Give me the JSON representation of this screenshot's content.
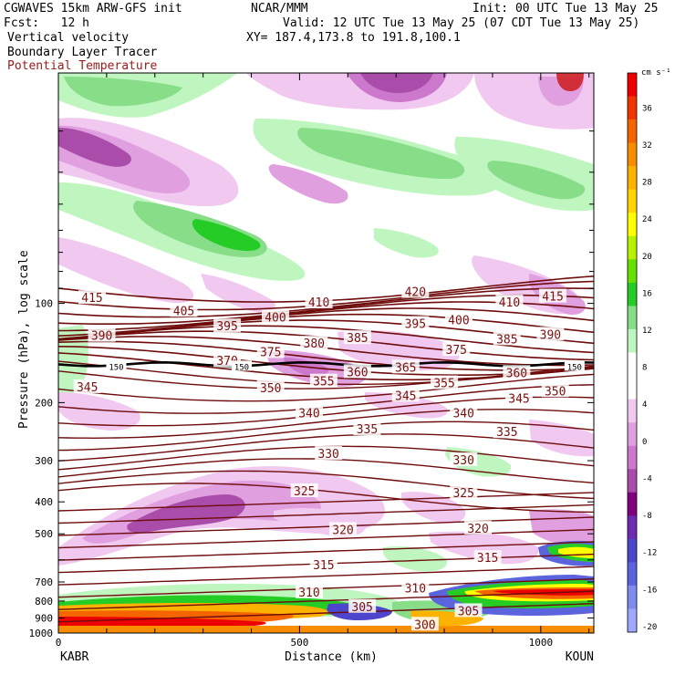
{
  "header": {
    "model": "CGWAVES 15km ARW-GFS init",
    "center": "NCAR/MMM",
    "init": "Init: 00 UTC Tue 13 May 25",
    "fcst": "Fcst:   12 h",
    "valid": "Valid: 12 UTC Tue 13 May 25 (07 CDT Tue 13 May 25)",
    "field1": "Vertical velocity",
    "xy": "XY= 187.4,173.8 to 191.8,100.1",
    "field2": "Boundary Layer Tracer",
    "field3": "Potential Temperature"
  },
  "colors": {
    "theta_line": "#6e0c0c",
    "theta_label": "#7a1010",
    "tracer_line": "#000000"
  },
  "chart_data": {
    "type": "contour-cross-section",
    "xlabel": "Distance (km)",
    "ylabel": "Pressure (hPa), log scale",
    "xlim": [
      0,
      1110
    ],
    "ylim": [
      1000,
      20
    ],
    "x_ticks": [
      "0",
      "500",
      "1000"
    ],
    "y_ticks": [
      {
        "p": 100,
        "label": "100"
      },
      {
        "p": 200,
        "label": "200"
      },
      {
        "p": 300,
        "label": "300"
      },
      {
        "p": 400,
        "label": "400"
      },
      {
        "p": 500,
        "label": "500"
      },
      {
        "p": 600,
        "label": ""
      },
      {
        "p": 700,
        "label": "700"
      },
      {
        "p": 800,
        "label": "800"
      },
      {
        "p": 900,
        "label": "900"
      },
      {
        "p": 1000,
        "label": "1000"
      }
    ],
    "left_endpoint": "KABR",
    "right_endpoint": "KOUN",
    "colorbar": {
      "unit": "cm s⁻¹",
      "labels": [
        "36",
        "32",
        "28",
        "24",
        "20",
        "16",
        "12",
        "8",
        "4",
        "0",
        "-4",
        "-8",
        "-12",
        "-16",
        "-20"
      ],
      "colors": [
        "#ee0000",
        "#f03500",
        "#f46500",
        "#f88d00",
        "#fcb200",
        "#ffd400",
        "#ffff00",
        "#b8f200",
        "#66e000",
        "#26cc26",
        "#88dd88",
        "#bff5bf",
        "#ffffff",
        "#ffffff",
        "#f0c8f0",
        "#e0a0e0",
        "#cc78cc",
        "#aa4daa",
        "#800080",
        "#6c2bb0",
        "#4d45cc",
        "#5b64dd",
        "#7f8cee",
        "#9ea8ff"
      ]
    },
    "theta_labels": [
      {
        "value": "415",
        "x": 70,
        "p": 96
      },
      {
        "value": "415",
        "x": 1025,
        "p": 95
      },
      {
        "value": "420",
        "x": 740,
        "p": 92
      },
      {
        "value": "410",
        "x": 540,
        "p": 99
      },
      {
        "value": "410",
        "x": 935,
        "p": 99
      },
      {
        "value": "405",
        "x": 260,
        "p": 105
      },
      {
        "value": "400",
        "x": 450,
        "p": 110
      },
      {
        "value": "400",
        "x": 830,
        "p": 112
      },
      {
        "value": "395",
        "x": 350,
        "p": 117
      },
      {
        "value": "395",
        "x": 740,
        "p": 115
      },
      {
        "value": "390",
        "x": 90,
        "p": 125
      },
      {
        "value": "390",
        "x": 1020,
        "p": 124
      },
      {
        "value": "385",
        "x": 620,
        "p": 127
      },
      {
        "value": "385",
        "x": 930,
        "p": 128
      },
      {
        "value": "380",
        "x": 530,
        "p": 132
      },
      {
        "value": "375",
        "x": 440,
        "p": 140
      },
      {
        "value": "375",
        "x": 825,
        "p": 138
      },
      {
        "value": "370",
        "x": 350,
        "p": 149
      },
      {
        "value": "365",
        "x": 720,
        "p": 156
      },
      {
        "value": "360",
        "x": 620,
        "p": 161
      },
      {
        "value": "360",
        "x": 950,
        "p": 162
      },
      {
        "value": "355",
        "x": 550,
        "p": 172
      },
      {
        "value": "355",
        "x": 800,
        "p": 174
      },
      {
        "value": "350",
        "x": 440,
        "p": 180
      },
      {
        "value": "350",
        "x": 1030,
        "p": 184
      },
      {
        "value": "345",
        "x": 60,
        "p": 179
      },
      {
        "value": "345",
        "x": 720,
        "p": 190
      },
      {
        "value": "345",
        "x": 955,
        "p": 194
      },
      {
        "value": "340",
        "x": 520,
        "p": 215
      },
      {
        "value": "340",
        "x": 840,
        "p": 215
      },
      {
        "value": "335",
        "x": 640,
        "p": 240
      },
      {
        "value": "335",
        "x": 930,
        "p": 245
      },
      {
        "value": "330",
        "x": 560,
        "p": 285
      },
      {
        "value": "330",
        "x": 840,
        "p": 298
      },
      {
        "value": "325",
        "x": 510,
        "p": 370
      },
      {
        "value": "325",
        "x": 840,
        "p": 375
      },
      {
        "value": "320",
        "x": 590,
        "p": 485
      },
      {
        "value": "320",
        "x": 870,
        "p": 480
      },
      {
        "value": "315",
        "x": 550,
        "p": 620
      },
      {
        "value": "315",
        "x": 890,
        "p": 590
      },
      {
        "value": "310",
        "x": 520,
        "p": 750
      },
      {
        "value": "310",
        "x": 740,
        "p": 730
      },
      {
        "value": "305",
        "x": 630,
        "p": 830
      },
      {
        "value": "305",
        "x": 850,
        "p": 855
      },
      {
        "value": "300",
        "x": 760,
        "p": 940
      }
    ],
    "tropopause_labels": [
      {
        "value": "150",
        "x": 120,
        "p": 155
      },
      {
        "value": "150",
        "x": 380,
        "p": 155
      },
      {
        "value": "150",
        "x": 1070,
        "p": 155
      }
    ]
  }
}
